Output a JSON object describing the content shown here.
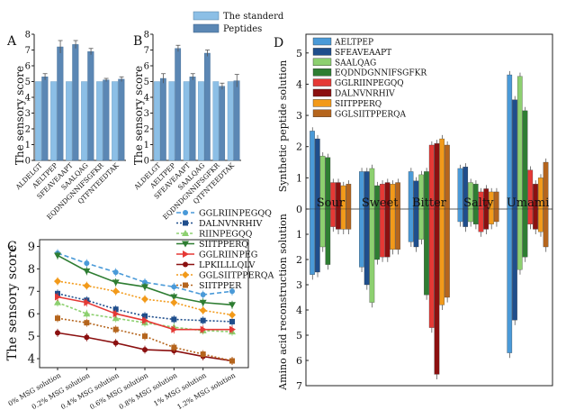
{
  "charts": {
    "A": {
      "panel_label": "A",
      "type": "bar",
      "ylabel": "The sensory score",
      "ylim": [
        0,
        8
      ],
      "yticks": [
        "0",
        "1",
        "2",
        "3",
        "4",
        "5",
        "6",
        "7",
        "8"
      ],
      "categories": [
        "ALDELGT",
        "AELTPEP",
        "SFEAVEAAPT",
        "SAALQAG",
        "EQDNDGNNIFSGFKR",
        "QTFNTEEDTAK"
      ],
      "series": [
        {
          "name": "The standerd",
          "values": [
            5,
            5,
            5,
            5,
            5,
            5
          ]
        },
        {
          "name": "Peptides",
          "values": [
            5.3,
            7.2,
            7.35,
            6.9,
            5.1,
            5.15
          ]
        }
      ],
      "errors": [
        0.2,
        0.4,
        0.25,
        0.2,
        0.1,
        0.15
      ]
    },
    "B": {
      "panel_label": "B",
      "type": "bar",
      "ylabel": "The sensory score",
      "ylim": [
        0,
        8
      ],
      "yticks": [
        "0",
        "1",
        "2",
        "3",
        "4",
        "5",
        "6",
        "7",
        "8"
      ],
      "categories": [
        "ALDELGT",
        "AELTPEP",
        "SFEAVEAAPT",
        "SAALQAG",
        "EQDNDGNNIFSGFKR",
        "QTFNTEEDTAK"
      ],
      "series": [
        {
          "name": "The standerd",
          "values": [
            5,
            5,
            5,
            5,
            5,
            5
          ]
        },
        {
          "name": "Peptides",
          "values": [
            5.2,
            7.1,
            5.3,
            6.8,
            4.7,
            5.05
          ]
        }
      ],
      "errors": [
        0.3,
        0.2,
        0.2,
        0.2,
        0.2,
        0.4
      ]
    },
    "C": {
      "panel_label": "C",
      "type": "line",
      "ylabel": "The sensory score",
      "ylim": [
        3.6,
        9.3
      ],
      "yticks": [
        "4",
        "5",
        "6",
        "7",
        "8",
        "9"
      ],
      "categories": [
        "0% MSG solution",
        "0.2% MSG solution",
        "0.4% MSG solution",
        "0.6% MSG solution",
        "0.8% MSG solution",
        "1% MSG solution",
        "1.2% MSG solution"
      ],
      "series": [
        {
          "name": "GGLRIINPEGQQ",
          "color": "#4a9ad8",
          "values": [
            8.7,
            8.25,
            7.85,
            7.4,
            7.2,
            6.85,
            7.0
          ]
        },
        {
          "name": "DALNVNRHIV",
          "color": "#1f4e8c",
          "values": [
            6.9,
            6.6,
            6.2,
            5.9,
            5.75,
            5.7,
            5.65
          ]
        },
        {
          "name": "RIINPEGQQ",
          "color": "#8dd070",
          "values": [
            6.5,
            6.0,
            5.8,
            5.6,
            5.4,
            5.25,
            5.2
          ]
        },
        {
          "name": "SIITPPERQ",
          "color": "#2e7d32",
          "values": [
            8.6,
            7.9,
            7.4,
            7.2,
            6.75,
            6.5,
            6.4
          ]
        },
        {
          "name": "GGLRIINPEG",
          "color": "#e53935",
          "values": [
            6.75,
            6.5,
            6.0,
            5.7,
            5.3,
            5.3,
            5.3
          ]
        },
        {
          "name": "LPKILLLQLV",
          "color": "#8b1010",
          "values": [
            5.15,
            4.95,
            4.7,
            4.4,
            4.35,
            4.1,
            3.9
          ]
        },
        {
          "name": "GGLSIITPPERQA",
          "color": "#f29a1a",
          "values": [
            7.45,
            7.25,
            7.0,
            6.65,
            6.5,
            6.15,
            5.95
          ]
        },
        {
          "name": "SIITPPER",
          "color": "#b5651d",
          "values": [
            5.8,
            5.6,
            5.3,
            5.0,
            4.5,
            4.2,
            3.9
          ]
        }
      ]
    },
    "D": {
      "panel_label": "D",
      "type": "bar",
      "ylabel_top": "Synthetic peptide solution",
      "ylabel_bottom": "Amino acid reconstruction solution",
      "yticks_top": [
        "0",
        "1",
        "2",
        "3",
        "4",
        "5"
      ],
      "yticks_bottom": [
        "1",
        "2",
        "3",
        "4",
        "5",
        "6",
        "7"
      ],
      "categories": [
        "Sour",
        "Sweet",
        "Bitter",
        "Salty",
        "Umami"
      ],
      "series": [
        {
          "name": "AELTPEP",
          "color": "#4a9ad8",
          "top": [
            2.5,
            1.2,
            1.2,
            1.3,
            4.3
          ],
          "bottom": [
            2.6,
            2.3,
            1.3,
            0.5,
            5.7
          ]
        },
        {
          "name": "SFEAVEAAPT",
          "color": "#1f4e8c",
          "top": [
            2.25,
            1.2,
            0.9,
            1.35,
            3.5
          ],
          "bottom": [
            2.5,
            3.0,
            1.5,
            0.7,
            4.4
          ]
        },
        {
          "name": "SAALQAG",
          "color": "#8dd070",
          "top": [
            1.7,
            1.3,
            1.1,
            0.85,
            4.25
          ],
          "bottom": [
            1.5,
            3.7,
            1.2,
            0.5,
            2.4
          ]
        },
        {
          "name": "EQDNDGNNIFSGFKR",
          "color": "#2e7d32",
          "top": [
            1.65,
            0.75,
            1.2,
            0.8,
            3.15
          ],
          "bottom": [
            2.2,
            2.0,
            3.4,
            0.6,
            1.9
          ]
        },
        {
          "name": "GGLRIINPEGQQ",
          "color": "#e53935",
          "top": [
            0.85,
            0.8,
            2.05,
            0.55,
            1.25
          ],
          "bottom": [
            0.7,
            1.9,
            4.7,
            0.9,
            0.6
          ]
        },
        {
          "name": "DALNVNRHIV",
          "color": "#8b1010",
          "top": [
            0.85,
            0.85,
            2.1,
            0.65,
            0.8
          ],
          "bottom": [
            0.8,
            1.9,
            6.55,
            0.8,
            0.8
          ]
        },
        {
          "name": "SIITPPERQ",
          "color": "#f29a1a",
          "top": [
            0.75,
            0.8,
            2.25,
            0.55,
            1.0
          ],
          "bottom": [
            0.8,
            1.6,
            3.8,
            0.6,
            0.9
          ]
        },
        {
          "name": "GGLSIITPPERQA",
          "color": "#b5651d",
          "top": [
            0.8,
            0.85,
            2.05,
            0.55,
            1.5
          ],
          "bottom": [
            0.8,
            1.6,
            3.5,
            0.5,
            1.5
          ]
        }
      ]
    }
  },
  "chart_data": [
    {
      "type": "bar",
      "panel": "A",
      "ylabel": "The sensory score",
      "ylim": [
        0,
        8
      ],
      "categories": [
        "ALDELGT",
        "AELTPEP",
        "SFEAVEAAPT",
        "SAALQAG",
        "EQDNDGNNIFSGFKR",
        "QTFNTEEDTAK"
      ],
      "series": [
        {
          "name": "The standerd",
          "values": [
            5,
            5,
            5,
            5,
            5,
            5
          ]
        },
        {
          "name": "Peptides",
          "values": [
            5.3,
            7.2,
            7.35,
            6.9,
            5.1,
            5.15
          ]
        }
      ]
    },
    {
      "type": "bar",
      "panel": "B",
      "ylabel": "The sensory score",
      "ylim": [
        0,
        8
      ],
      "categories": [
        "ALDELGT",
        "AELTPEP",
        "SFEAVEAAPT",
        "SAALQAG",
        "EQDNDGNNIFSGFKR",
        "QTFNTEEDTAK"
      ],
      "series": [
        {
          "name": "The standerd",
          "values": [
            5,
            5,
            5,
            5,
            5,
            5
          ]
        },
        {
          "name": "Peptides",
          "values": [
            5.2,
            7.1,
            5.3,
            6.8,
            4.7,
            5.05
          ]
        }
      ]
    },
    {
      "type": "line",
      "panel": "C",
      "ylabel": "The sensory score",
      "ylim": [
        3.6,
        9.3
      ],
      "categories": [
        "0% MSG solution",
        "0.2% MSG solution",
        "0.4% MSG solution",
        "0.6% MSG solution",
        "0.8% MSG solution",
        "1% MSG solution",
        "1.2% MSG solution"
      ],
      "series": [
        {
          "name": "GGLRIINPEGQQ",
          "values": [
            8.7,
            8.25,
            7.85,
            7.4,
            7.2,
            6.85,
            7.0
          ]
        },
        {
          "name": "DALNVNRHIV",
          "values": [
            6.9,
            6.6,
            6.2,
            5.9,
            5.75,
            5.7,
            5.65
          ]
        },
        {
          "name": "RIINPEGQQ",
          "values": [
            6.5,
            6.0,
            5.8,
            5.6,
            5.4,
            5.25,
            5.2
          ]
        },
        {
          "name": "SIITPPERQ",
          "values": [
            8.6,
            7.9,
            7.4,
            7.2,
            6.75,
            6.5,
            6.4
          ]
        },
        {
          "name": "GGLRIINPEG",
          "values": [
            6.75,
            6.5,
            6.0,
            5.7,
            5.3,
            5.3,
            5.3
          ]
        },
        {
          "name": "LPKILLLQLV",
          "values": [
            5.15,
            4.95,
            4.7,
            4.4,
            4.35,
            4.1,
            3.9
          ]
        },
        {
          "name": "GGLSIITPPERQA",
          "values": [
            7.45,
            7.25,
            7.0,
            6.65,
            6.5,
            6.15,
            5.95
          ]
        },
        {
          "name": "SIITPPER",
          "values": [
            5.8,
            5.6,
            5.3,
            5.0,
            4.5,
            4.2,
            3.9
          ]
        }
      ]
    },
    {
      "type": "bar",
      "panel": "D",
      "ylabel": "Synthetic peptide solution / Amino acid reconstruction solution",
      "categories": [
        "Sour",
        "Sweet",
        "Bitter",
        "Salty",
        "Umami"
      ],
      "series": [
        {
          "name": "AELTPEP",
          "values_top": [
            2.5,
            1.2,
            1.2,
            1.3,
            4.3
          ],
          "values_bottom": [
            2.6,
            2.3,
            1.3,
            0.5,
            5.7
          ]
        },
        {
          "name": "SFEAVEAAPT",
          "values_top": [
            2.25,
            1.2,
            0.9,
            1.35,
            3.5
          ],
          "values_bottom": [
            2.5,
            3.0,
            1.5,
            0.7,
            4.4
          ]
        },
        {
          "name": "SAALQAG",
          "values_top": [
            1.7,
            1.3,
            1.1,
            0.85,
            4.25
          ],
          "values_bottom": [
            1.5,
            3.7,
            1.2,
            0.5,
            2.4
          ]
        },
        {
          "name": "EQDNDGNNIFSGFKR",
          "values_top": [
            1.65,
            0.75,
            1.2,
            0.8,
            3.15
          ],
          "values_bottom": [
            2.2,
            2.0,
            3.4,
            0.6,
            1.9
          ]
        },
        {
          "name": "GGLRIINPEGQQ",
          "values_top": [
            0.85,
            0.8,
            2.05,
            0.55,
            1.25
          ],
          "values_bottom": [
            0.7,
            1.9,
            4.7,
            0.9,
            0.6
          ]
        },
        {
          "name": "DALNVNRHIV",
          "values_top": [
            0.85,
            0.85,
            2.1,
            0.65,
            0.8
          ],
          "values_bottom": [
            0.8,
            1.9,
            6.55,
            0.8,
            0.8
          ]
        },
        {
          "name": "SIITPPERQ",
          "values_top": [
            0.75,
            0.8,
            2.25,
            0.55,
            1.0
          ],
          "values_bottom": [
            0.8,
            1.6,
            3.8,
            0.6,
            0.9
          ]
        },
        {
          "name": "GGLSIITPPERQA",
          "values_top": [
            0.8,
            0.85,
            2.05,
            0.55,
            1.5
          ],
          "values_bottom": [
            0.8,
            1.6,
            3.5,
            0.5,
            1.5
          ]
        }
      ]
    }
  ],
  "legend_ab": {
    "standard_label": "The standerd",
    "standard_color": "#8cbfe6",
    "peptides_label": "Peptides",
    "peptides_color": "#5b87b4"
  }
}
